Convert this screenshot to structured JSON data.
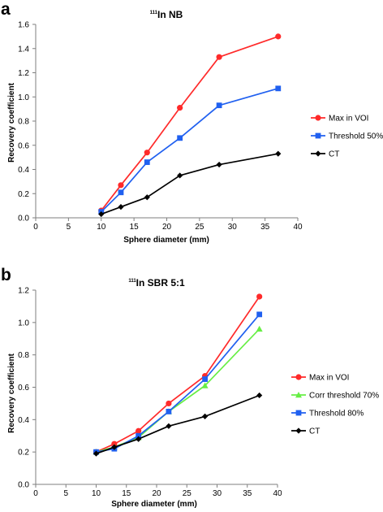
{
  "chart_data": [
    {
      "type": "line",
      "panel_label": "a",
      "title_sup": "111",
      "title_main": "In NB",
      "xlabel": "Sphere diameter (mm)",
      "ylabel": "Recovery coefficient",
      "xlim": [
        0,
        40
      ],
      "ylim": [
        0,
        1.6
      ],
      "xticks": [
        "0",
        "5",
        "10",
        "15",
        "20",
        "25",
        "30",
        "35",
        "40"
      ],
      "yticks": [
        "0.0",
        "0.2",
        "0.4",
        "0.6",
        "0.8",
        "1.0",
        "1.2",
        "1.4",
        "1.6"
      ],
      "grid": false,
      "legend_position": "right",
      "series": [
        {
          "name": "Max in VOI",
          "color": "#ff2a2a",
          "marker": "circle",
          "x": [
            10,
            13,
            17,
            22,
            28,
            37
          ],
          "y": [
            0.06,
            0.27,
            0.54,
            0.91,
            1.33,
            1.5
          ]
        },
        {
          "name": "Threshold 50%",
          "color": "#2060f0",
          "marker": "square",
          "x": [
            10,
            13,
            17,
            22,
            28,
            37
          ],
          "y": [
            0.05,
            0.21,
            0.46,
            0.66,
            0.93,
            1.07
          ]
        },
        {
          "name": "CT",
          "color": "#000000",
          "marker": "diamond",
          "x": [
            10,
            13,
            17,
            22,
            28,
            37
          ],
          "y": [
            0.03,
            0.09,
            0.17,
            0.35,
            0.44,
            0.53
          ]
        }
      ]
    },
    {
      "type": "line",
      "panel_label": "b",
      "title_sup": "111",
      "title_main": "In SBR 5:1",
      "xlabel": "Sphere diameter (mm)",
      "ylabel": "Recovery coefficient",
      "xlim": [
        0,
        40
      ],
      "ylim": [
        0,
        1.2
      ],
      "xticks": [
        "0",
        "5",
        "10",
        "15",
        "20",
        "25",
        "30",
        "35",
        "40"
      ],
      "yticks": [
        "0.0",
        "0.2",
        "0.4",
        "0.6",
        "0.8",
        "1.0",
        "1.2"
      ],
      "grid": false,
      "legend_position": "right",
      "series": [
        {
          "name": "Max in VOI",
          "color": "#ff2a2a",
          "marker": "circle",
          "x": [
            10,
            13,
            17,
            22,
            28,
            37
          ],
          "y": [
            0.2,
            0.25,
            0.33,
            0.5,
            0.67,
            1.16
          ]
        },
        {
          "name": "Corr threshold 70%",
          "color": "#66ee44",
          "marker": "triangle",
          "x": [
            10,
            13,
            17,
            22,
            28,
            37
          ],
          "y": [
            0.2,
            0.23,
            0.29,
            0.45,
            0.61,
            0.96
          ]
        },
        {
          "name": "Threshold 80%",
          "color": "#2060f0",
          "marker": "square",
          "x": [
            10,
            13,
            17,
            22,
            28,
            37
          ],
          "y": [
            0.2,
            0.22,
            0.3,
            0.45,
            0.65,
            1.05
          ]
        },
        {
          "name": "CT",
          "color": "#000000",
          "marker": "diamond",
          "x": [
            10,
            13,
            17,
            22,
            28,
            37
          ],
          "y": [
            0.19,
            0.23,
            0.28,
            0.36,
            0.42,
            0.55
          ]
        }
      ]
    }
  ]
}
